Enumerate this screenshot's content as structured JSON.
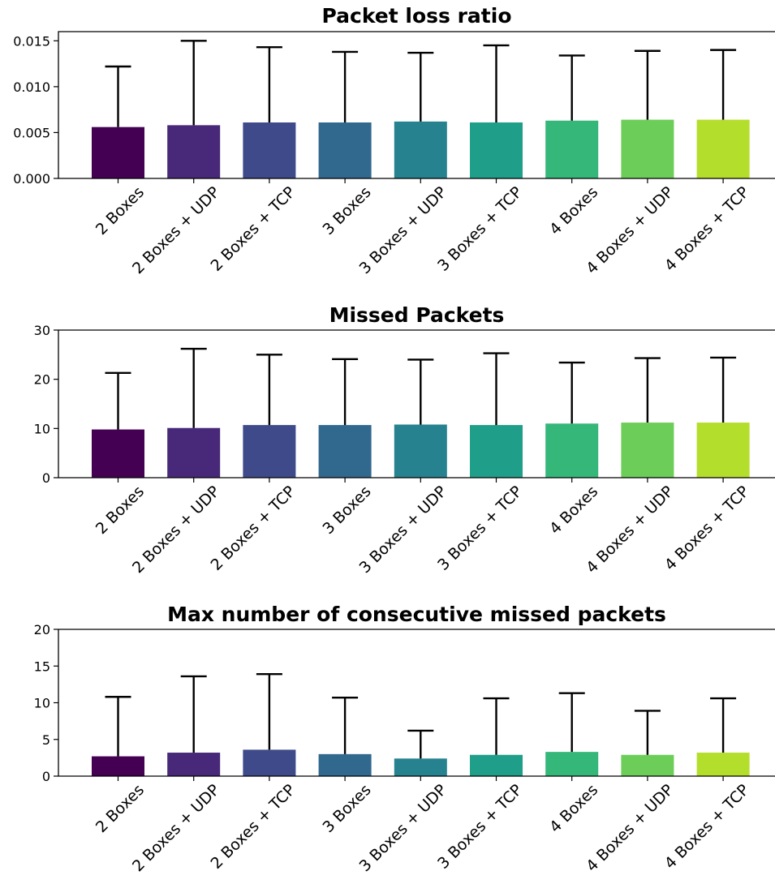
{
  "chart_data": [
    {
      "type": "bar",
      "title": "Packet loss ratio",
      "categories": [
        "2 Boxes",
        "2 Boxes + UDP",
        "2 Boxes + TCP",
        "3 Boxes",
        "3 Boxes + UDP",
        "3 Boxes + TCP",
        "4 Boxes",
        "4 Boxes + UDP",
        "4 Boxes + TCP"
      ],
      "values": [
        0.0056,
        0.0058,
        0.0061,
        0.0061,
        0.0062,
        0.0061,
        0.0063,
        0.0064,
        0.0064
      ],
      "error_upper": [
        0.0122,
        0.015,
        0.0143,
        0.0138,
        0.0137,
        0.0145,
        0.0134,
        0.0139,
        0.014
      ],
      "ylim": [
        0,
        0.016
      ],
      "yticks": [
        0,
        0.005,
        0.01,
        0.015
      ],
      "ytick_labels": [
        "0.000",
        "0.005",
        "0.010",
        "0.015"
      ],
      "xlabel": "",
      "ylabel": ""
    },
    {
      "type": "bar",
      "title": "Missed Packets",
      "categories": [
        "2 Boxes",
        "2 Boxes + UDP",
        "2 Boxes + TCP",
        "3 Boxes",
        "3 Boxes + UDP",
        "3 Boxes + TCP",
        "4 Boxes",
        "4 Boxes + UDP",
        "4 Boxes + TCP"
      ],
      "values": [
        9.8,
        10.1,
        10.7,
        10.7,
        10.8,
        10.7,
        11.0,
        11.2,
        11.2
      ],
      "error_upper": [
        21.3,
        26.2,
        25.0,
        24.1,
        24.0,
        25.3,
        23.4,
        24.3,
        24.4
      ],
      "ylim": [
        0,
        30
      ],
      "yticks": [
        0,
        10,
        20,
        30
      ],
      "ytick_labels": [
        "0",
        "10",
        "20",
        "30"
      ],
      "xlabel": "",
      "ylabel": ""
    },
    {
      "type": "bar",
      "title": "Max number of consecutive missed packets",
      "categories": [
        "2 Boxes",
        "2 Boxes + UDP",
        "2 Boxes + TCP",
        "3 Boxes",
        "3 Boxes + UDP",
        "3 Boxes + TCP",
        "4 Boxes",
        "4 Boxes + UDP",
        "4 Boxes + TCP"
      ],
      "values": [
        2.7,
        3.2,
        3.6,
        3.0,
        2.4,
        2.9,
        3.3,
        2.9,
        3.2
      ],
      "error_upper": [
        10.8,
        13.6,
        13.9,
        10.7,
        6.2,
        10.6,
        11.3,
        8.9,
        10.6
      ],
      "ylim": [
        0,
        20
      ],
      "yticks": [
        0,
        5,
        10,
        15,
        20
      ],
      "ytick_labels": [
        "0",
        "5",
        "10",
        "15",
        "20"
      ],
      "xlabel": "",
      "ylabel": ""
    }
  ],
  "colors": [
    "#440154",
    "#482878",
    "#3e4a89",
    "#31688e",
    "#26828e",
    "#1f9e89",
    "#35b779",
    "#6dcd59",
    "#b4de2c"
  ]
}
